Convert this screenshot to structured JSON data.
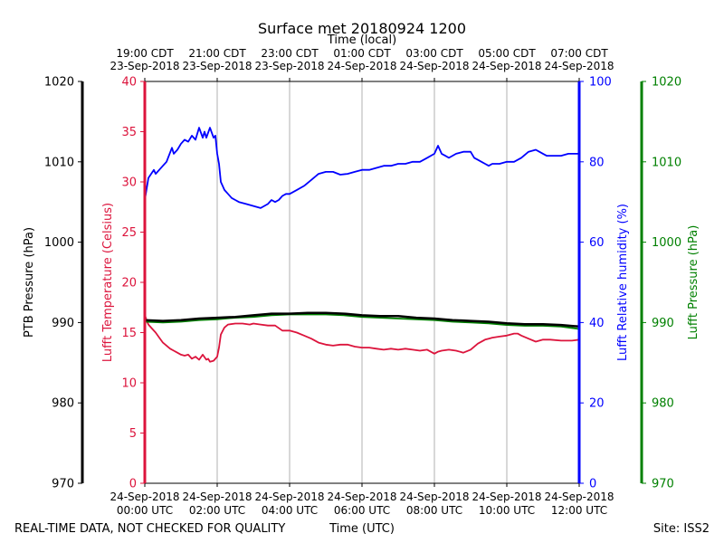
{
  "chart_data": {
    "type": "line",
    "title": "Surface met 20180924 1200",
    "xlabel_top": "Time (local)",
    "xlabel_bottom": "Time (UTC)",
    "footer_left": "REAL-TIME DATA, NOT CHECKED FOR QUALITY",
    "footer_right": "Site: ISS2",
    "x_range_hours": [
      0,
      12
    ],
    "x_ticks_utc": [
      {
        "h": 0,
        "l1": "24-Sep-2018",
        "l2": "00:00 UTC"
      },
      {
        "h": 2,
        "l1": "24-Sep-2018",
        "l2": "02:00 UTC"
      },
      {
        "h": 4,
        "l1": "24-Sep-2018",
        "l2": "04:00 UTC"
      },
      {
        "h": 6,
        "l1": "24-Sep-2018",
        "l2": "06:00 UTC"
      },
      {
        "h": 8,
        "l1": "24-Sep-2018",
        "l2": "08:00 UTC"
      },
      {
        "h": 10,
        "l1": "24-Sep-2018",
        "l2": "10:00 UTC"
      },
      {
        "h": 12,
        "l1": "24-Sep-2018",
        "l2": "12:00 UTC"
      }
    ],
    "x_ticks_local": [
      {
        "h": 0,
        "l1": "19:00 CDT",
        "l2": "23-Sep-2018"
      },
      {
        "h": 2,
        "l1": "21:00 CDT",
        "l2": "23-Sep-2018"
      },
      {
        "h": 4,
        "l1": "23:00 CDT",
        "l2": "23-Sep-2018"
      },
      {
        "h": 6,
        "l1": "01:00 CDT",
        "l2": "24-Sep-2018"
      },
      {
        "h": 8,
        "l1": "03:00 CDT",
        "l2": "24-Sep-2018"
      },
      {
        "h": 10,
        "l1": "05:00 CDT",
        "l2": "24-Sep-2018"
      },
      {
        "h": 12,
        "l1": "07:00 CDT",
        "l2": "24-Sep-2018"
      }
    ],
    "axes": {
      "ptb": {
        "label": "PTB Pressure (hPa)",
        "color": "#000000",
        "ylim": [
          970,
          1020
        ],
        "ticks": [
          970,
          980,
          990,
          1000,
          1010,
          1020
        ]
      },
      "temp": {
        "label": "Lufft Temperature (Celsius)",
        "color": "#dc143c",
        "ylim": [
          0,
          40
        ],
        "ticks": [
          0,
          5,
          10,
          15,
          20,
          25,
          30,
          35,
          40
        ]
      },
      "rh": {
        "label": "Lufft Relative humidity (%)",
        "color": "#0000ff",
        "ylim": [
          0,
          100
        ],
        "ticks": [
          0,
          20,
          40,
          60,
          80,
          100
        ]
      },
      "lufft_p": {
        "label": "Lufft Pressure (hPa)",
        "color": "#008000",
        "ylim": [
          970,
          1020
        ],
        "ticks": [
          970,
          980,
          990,
          1000,
          1010,
          1020
        ]
      }
    },
    "series": [
      {
        "name": "Lufft Relative humidity",
        "axis": "rh",
        "color": "#0000ff",
        "x": [
          0,
          0.1,
          0.25,
          0.3,
          0.5,
          0.6,
          0.75,
          0.8,
          0.9,
          1.0,
          1.1,
          1.2,
          1.3,
          1.4,
          1.5,
          1.6,
          1.65,
          1.7,
          1.8,
          1.9,
          1.95,
          2.0,
          2.05,
          2.1,
          2.15,
          2.2,
          2.3,
          2.4,
          2.5,
          2.6,
          2.8,
          3.0,
          3.2,
          3.4,
          3.5,
          3.6,
          3.7,
          3.8,
          3.9,
          4.0,
          4.2,
          4.4,
          4.6,
          4.8,
          5.0,
          5.2,
          5.4,
          5.6,
          5.8,
          6.0,
          6.2,
          6.4,
          6.6,
          6.8,
          7.0,
          7.2,
          7.4,
          7.6,
          7.8,
          8.0,
          8.05,
          8.1,
          8.2,
          8.3,
          8.4,
          8.6,
          8.8,
          9.0,
          9.1,
          9.2,
          9.3,
          9.4,
          9.5,
          9.6,
          9.8,
          10.0,
          10.2,
          10.4,
          10.6,
          10.8,
          10.9,
          11.0,
          11.1,
          11.3,
          11.5,
          11.7,
          11.9,
          12.0
        ],
        "y": [
          70.5,
          76.0,
          78.0,
          77.0,
          79.0,
          80.0,
          83.5,
          82.0,
          83.0,
          84.5,
          85.5,
          85.0,
          86.5,
          85.5,
          88.5,
          86.0,
          87.5,
          86.0,
          88.5,
          86.0,
          86.5,
          82.0,
          79.5,
          75.0,
          74.0,
          73.0,
          72.0,
          71.0,
          70.5,
          70.0,
          69.5,
          69.0,
          68.5,
          69.5,
          70.5,
          70.0,
          70.5,
          71.5,
          72.0,
          72.0,
          73.0,
          74.0,
          75.5,
          77.0,
          77.5,
          77.5,
          76.8,
          77.0,
          77.5,
          78.0,
          78.0,
          78.5,
          79.0,
          79.0,
          79.5,
          79.5,
          80.0,
          80.0,
          81.0,
          82.0,
          83.0,
          84.0,
          82.0,
          81.5,
          81.0,
          82.0,
          82.5,
          82.5,
          81.0,
          80.5,
          80.0,
          79.5,
          79.0,
          79.5,
          79.5,
          80.0,
          80.0,
          81.0,
          82.5,
          83.0,
          82.5,
          82.0,
          81.5,
          81.5,
          81.5,
          82.0,
          82.0,
          82.0
        ]
      },
      {
        "name": "Lufft Temperature",
        "axis": "temp",
        "color": "#dc143c",
        "x": [
          0,
          0.05,
          0.1,
          0.2,
          0.3,
          0.4,
          0.5,
          0.6,
          0.7,
          0.8,
          0.9,
          1.0,
          1.1,
          1.2,
          1.3,
          1.4,
          1.5,
          1.6,
          1.7,
          1.75,
          1.8,
          1.9,
          2.0,
          2.05,
          2.1,
          2.2,
          2.3,
          2.5,
          2.7,
          2.9,
          3.0,
          3.2,
          3.4,
          3.6,
          3.8,
          4.0,
          4.2,
          4.4,
          4.6,
          4.8,
          5.0,
          5.2,
          5.4,
          5.6,
          5.8,
          6.0,
          6.2,
          6.4,
          6.6,
          6.8,
          7.0,
          7.2,
          7.4,
          7.6,
          7.8,
          8.0,
          8.1,
          8.2,
          8.4,
          8.6,
          8.8,
          9.0,
          9.2,
          9.4,
          9.5,
          9.6,
          9.8,
          10.0,
          10.2,
          10.3,
          10.4,
          10.6,
          10.8,
          11.0,
          11.2,
          11.5,
          11.8,
          12.0
        ],
        "y": [
          16.8,
          16.2,
          15.8,
          15.4,
          15.0,
          14.5,
          14.0,
          13.7,
          13.4,
          13.2,
          13.0,
          12.8,
          12.7,
          12.8,
          12.4,
          12.6,
          12.3,
          12.8,
          12.3,
          12.4,
          12.1,
          12.2,
          12.6,
          13.5,
          14.8,
          15.5,
          15.8,
          15.9,
          15.9,
          15.8,
          15.9,
          15.8,
          15.7,
          15.7,
          15.2,
          15.2,
          15.0,
          14.7,
          14.4,
          14.0,
          13.8,
          13.7,
          13.8,
          13.8,
          13.6,
          13.5,
          13.5,
          13.4,
          13.3,
          13.4,
          13.3,
          13.4,
          13.3,
          13.2,
          13.3,
          12.9,
          13.1,
          13.2,
          13.3,
          13.2,
          13.0,
          13.3,
          13.9,
          14.3,
          14.4,
          14.5,
          14.6,
          14.7,
          14.9,
          14.9,
          14.7,
          14.4,
          14.1,
          14.3,
          14.3,
          14.2,
          14.2,
          14.3
        ]
      },
      {
        "name": "Lufft Pressure",
        "axis": "lufft_p",
        "color": "#008000",
        "x": [
          0,
          0.5,
          1,
          1.5,
          2,
          2.5,
          3,
          3.5,
          4,
          4.5,
          5,
          5.5,
          6,
          6.5,
          7,
          7.5,
          8,
          8.5,
          9,
          9.5,
          10,
          10.5,
          11,
          11.5,
          12
        ],
        "y": [
          990.1,
          990.0,
          990.1,
          990.3,
          990.4,
          990.6,
          990.7,
          990.9,
          991.0,
          991.0,
          991.0,
          990.9,
          990.7,
          990.6,
          990.5,
          990.4,
          990.3,
          990.1,
          990.0,
          989.9,
          989.7,
          989.6,
          989.6,
          989.5,
          989.2
        ]
      },
      {
        "name": "PTB Pressure",
        "axis": "ptb",
        "color": "#000000",
        "x": [
          0,
          0.5,
          1,
          1.5,
          2,
          2.5,
          3,
          3.5,
          4,
          4.5,
          5,
          5.5,
          6,
          6.5,
          7,
          7.5,
          8,
          8.5,
          9,
          9.5,
          10,
          10.5,
          11,
          11.5,
          12
        ],
        "y": [
          990.3,
          990.2,
          990.3,
          990.5,
          990.6,
          990.7,
          990.9,
          991.1,
          991.1,
          991.2,
          991.2,
          991.1,
          990.9,
          990.8,
          990.8,
          990.6,
          990.5,
          990.3,
          990.2,
          990.1,
          989.9,
          989.8,
          989.8,
          989.7,
          989.5
        ]
      }
    ]
  }
}
